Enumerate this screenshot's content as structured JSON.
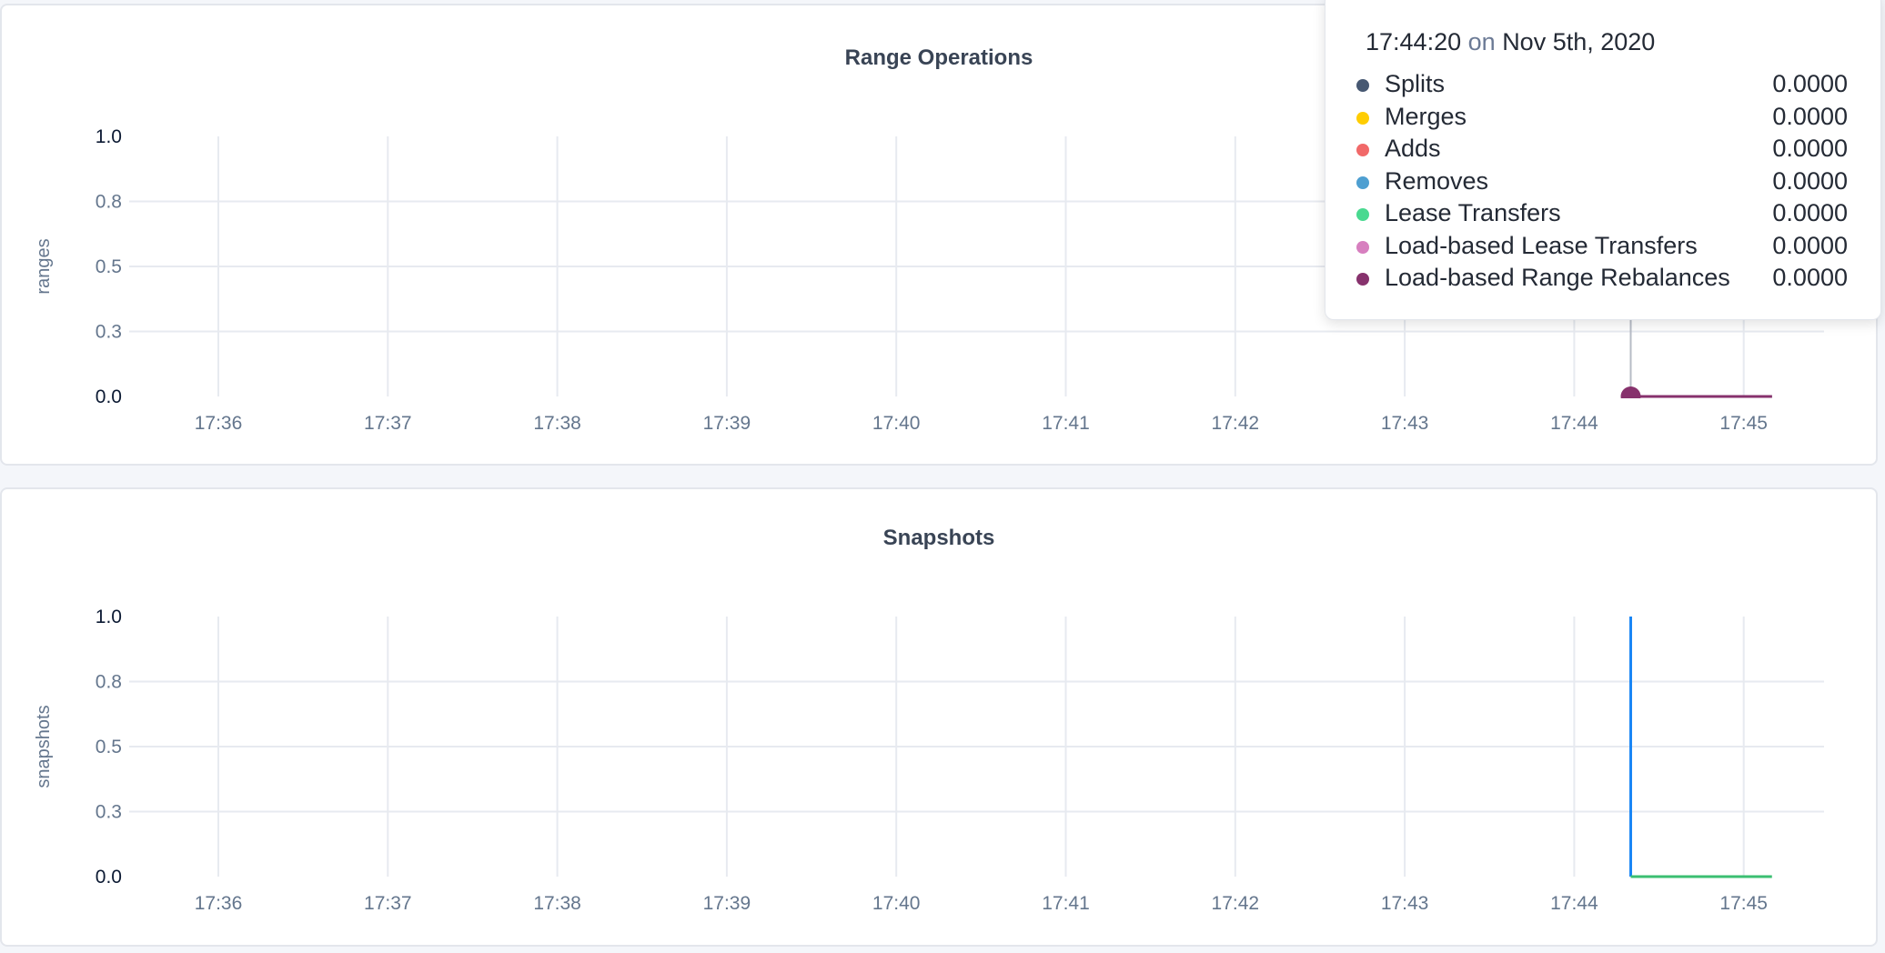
{
  "chart_data": [
    {
      "type": "line",
      "title": "Range Operations",
      "ylabel": "ranges",
      "xlabel": "",
      "ylim": [
        0,
        1
      ],
      "yticks": [
        {
          "value": 0,
          "label": "0.0"
        },
        {
          "value": 0.25,
          "label": "0.3"
        },
        {
          "value": 0.5,
          "label": "0.5"
        },
        {
          "value": 0.75,
          "label": "0.8"
        },
        {
          "value": 1,
          "label": "1.0"
        }
      ],
      "xticks": [
        "17:36",
        "17:37",
        "17:38",
        "17:39",
        "17:40",
        "17:41",
        "17:42",
        "17:43",
        "17:44",
        "17:45"
      ],
      "grid": true,
      "hover_time": "17:44:20",
      "series": [
        {
          "name": "Splits",
          "color": "#475872",
          "points": [
            [
              "17:44:20",
              0
            ],
            [
              "17:45:10",
              0
            ]
          ]
        },
        {
          "name": "Merges",
          "color": "#ffcd02",
          "points": [
            [
              "17:44:20",
              0
            ],
            [
              "17:45:10",
              0
            ]
          ]
        },
        {
          "name": "Adds",
          "color": "#f16969",
          "points": [
            [
              "17:44:20",
              0
            ],
            [
              "17:45:10",
              0
            ]
          ]
        },
        {
          "name": "Removes",
          "color": "#4e9fd1",
          "points": [
            [
              "17:44:20",
              0
            ],
            [
              "17:45:10",
              0
            ]
          ]
        },
        {
          "name": "Lease Transfers",
          "color": "#49d990",
          "points": [
            [
              "17:44:20",
              0
            ],
            [
              "17:45:10",
              0
            ]
          ]
        },
        {
          "name": "Load-based Lease Transfers",
          "color": "#d77fbf",
          "points": [
            [
              "17:44:20",
              0
            ],
            [
              "17:45:10",
              0
            ]
          ]
        },
        {
          "name": "Load-based Range Rebalances",
          "color": "#87326d",
          "points": [
            [
              "17:44:20",
              0
            ],
            [
              "17:45:10",
              0
            ]
          ]
        }
      ]
    },
    {
      "type": "line",
      "title": "Snapshots",
      "ylabel": "snapshots",
      "xlabel": "",
      "ylim": [
        0,
        1
      ],
      "yticks": [
        {
          "value": 0,
          "label": "0.0"
        },
        {
          "value": 0.25,
          "label": "0.3"
        },
        {
          "value": 0.5,
          "label": "0.5"
        },
        {
          "value": 0.75,
          "label": "0.8"
        },
        {
          "value": 1,
          "label": "1.0"
        }
      ],
      "xticks": [
        "17:36",
        "17:37",
        "17:38",
        "17:39",
        "17:40",
        "17:41",
        "17:42",
        "17:43",
        "17:44",
        "17:45"
      ],
      "grid": true,
      "series": [
        {
          "color": "#1a86f5",
          "points": [
            [
              "17:44:20",
              1
            ],
            [
              "17:44:20",
              0
            ]
          ]
        },
        {
          "color": "#3bbf72",
          "points": [
            [
              "17:44:20",
              0
            ],
            [
              "17:45:10",
              0
            ]
          ]
        }
      ]
    }
  ],
  "tooltip": {
    "time": "17:44:20",
    "on": "on",
    "date": "Nov 5th, 2020",
    "rows": [
      {
        "label": "Splits",
        "value": "0.0000",
        "color": "#475872"
      },
      {
        "label": "Merges",
        "value": "0.0000",
        "color": "#ffcd02"
      },
      {
        "label": "Adds",
        "value": "0.0000",
        "color": "#f16969"
      },
      {
        "label": "Removes",
        "value": "0.0000",
        "color": "#4e9fd1"
      },
      {
        "label": "Lease Transfers",
        "value": "0.0000",
        "color": "#49d990"
      },
      {
        "label": "Load-based Lease Transfers",
        "value": "0.0000",
        "color": "#d77fbf"
      },
      {
        "label": "Load-based Range Rebalances",
        "value": "0.0000",
        "color": "#87326d"
      }
    ]
  }
}
